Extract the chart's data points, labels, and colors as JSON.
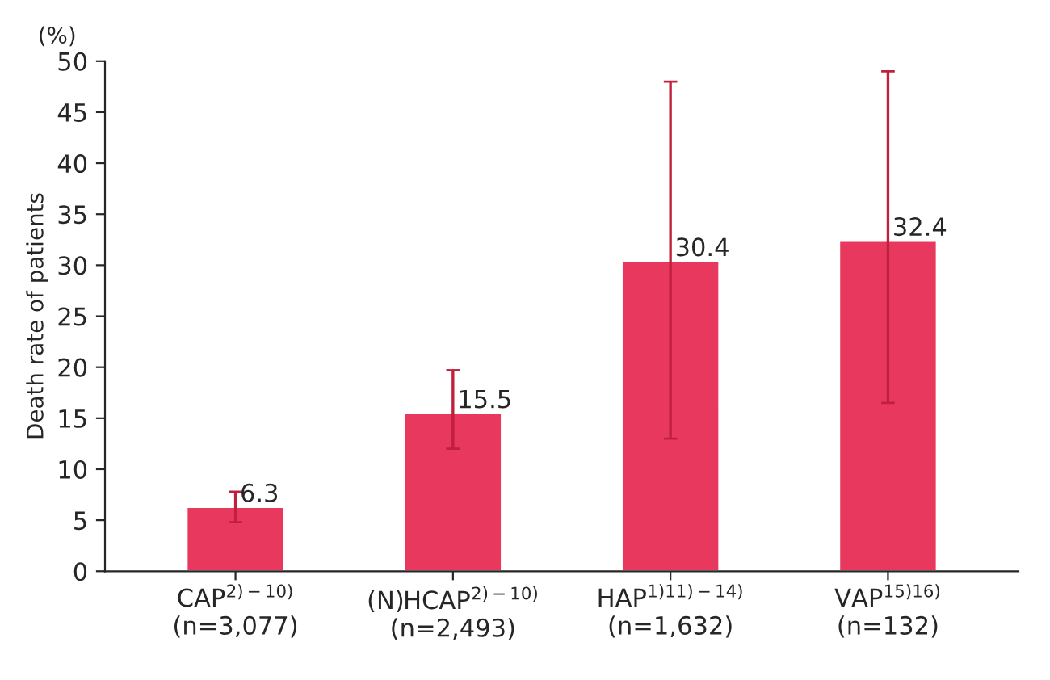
{
  "chart_data": {
    "type": "bar",
    "ylabel": "Death rate of patients",
    "annotations": [
      "(%)"
    ],
    "categories": [
      "CAP$^{2)−10)}$\n(n=3,077)",
      "(N)HCAP$^{2)−10)}$\n(n=2,493)",
      "HAP$^{1)11)−14)}$\n(n=1,632)",
      "VAP$^{15)16)}$\n(n=132)"
    ],
    "values": [
      6.3,
      15.5,
      30.4,
      32.4
    ],
    "color": "#e8385e",
    "errors": [
      [
        4.8,
        7.8
      ],
      [
        12,
        19.7
      ],
      [
        13,
        48
      ],
      [
        16.5,
        49
      ]
    ],
    "data_labels": true,
    "ylim": [
      0,
      50
    ],
    "yticks": [
      0,
      5,
      10,
      15,
      20,
      25,
      30,
      35,
      40,
      45,
      50
    ],
    "grid": false,
    "legend": false
  }
}
